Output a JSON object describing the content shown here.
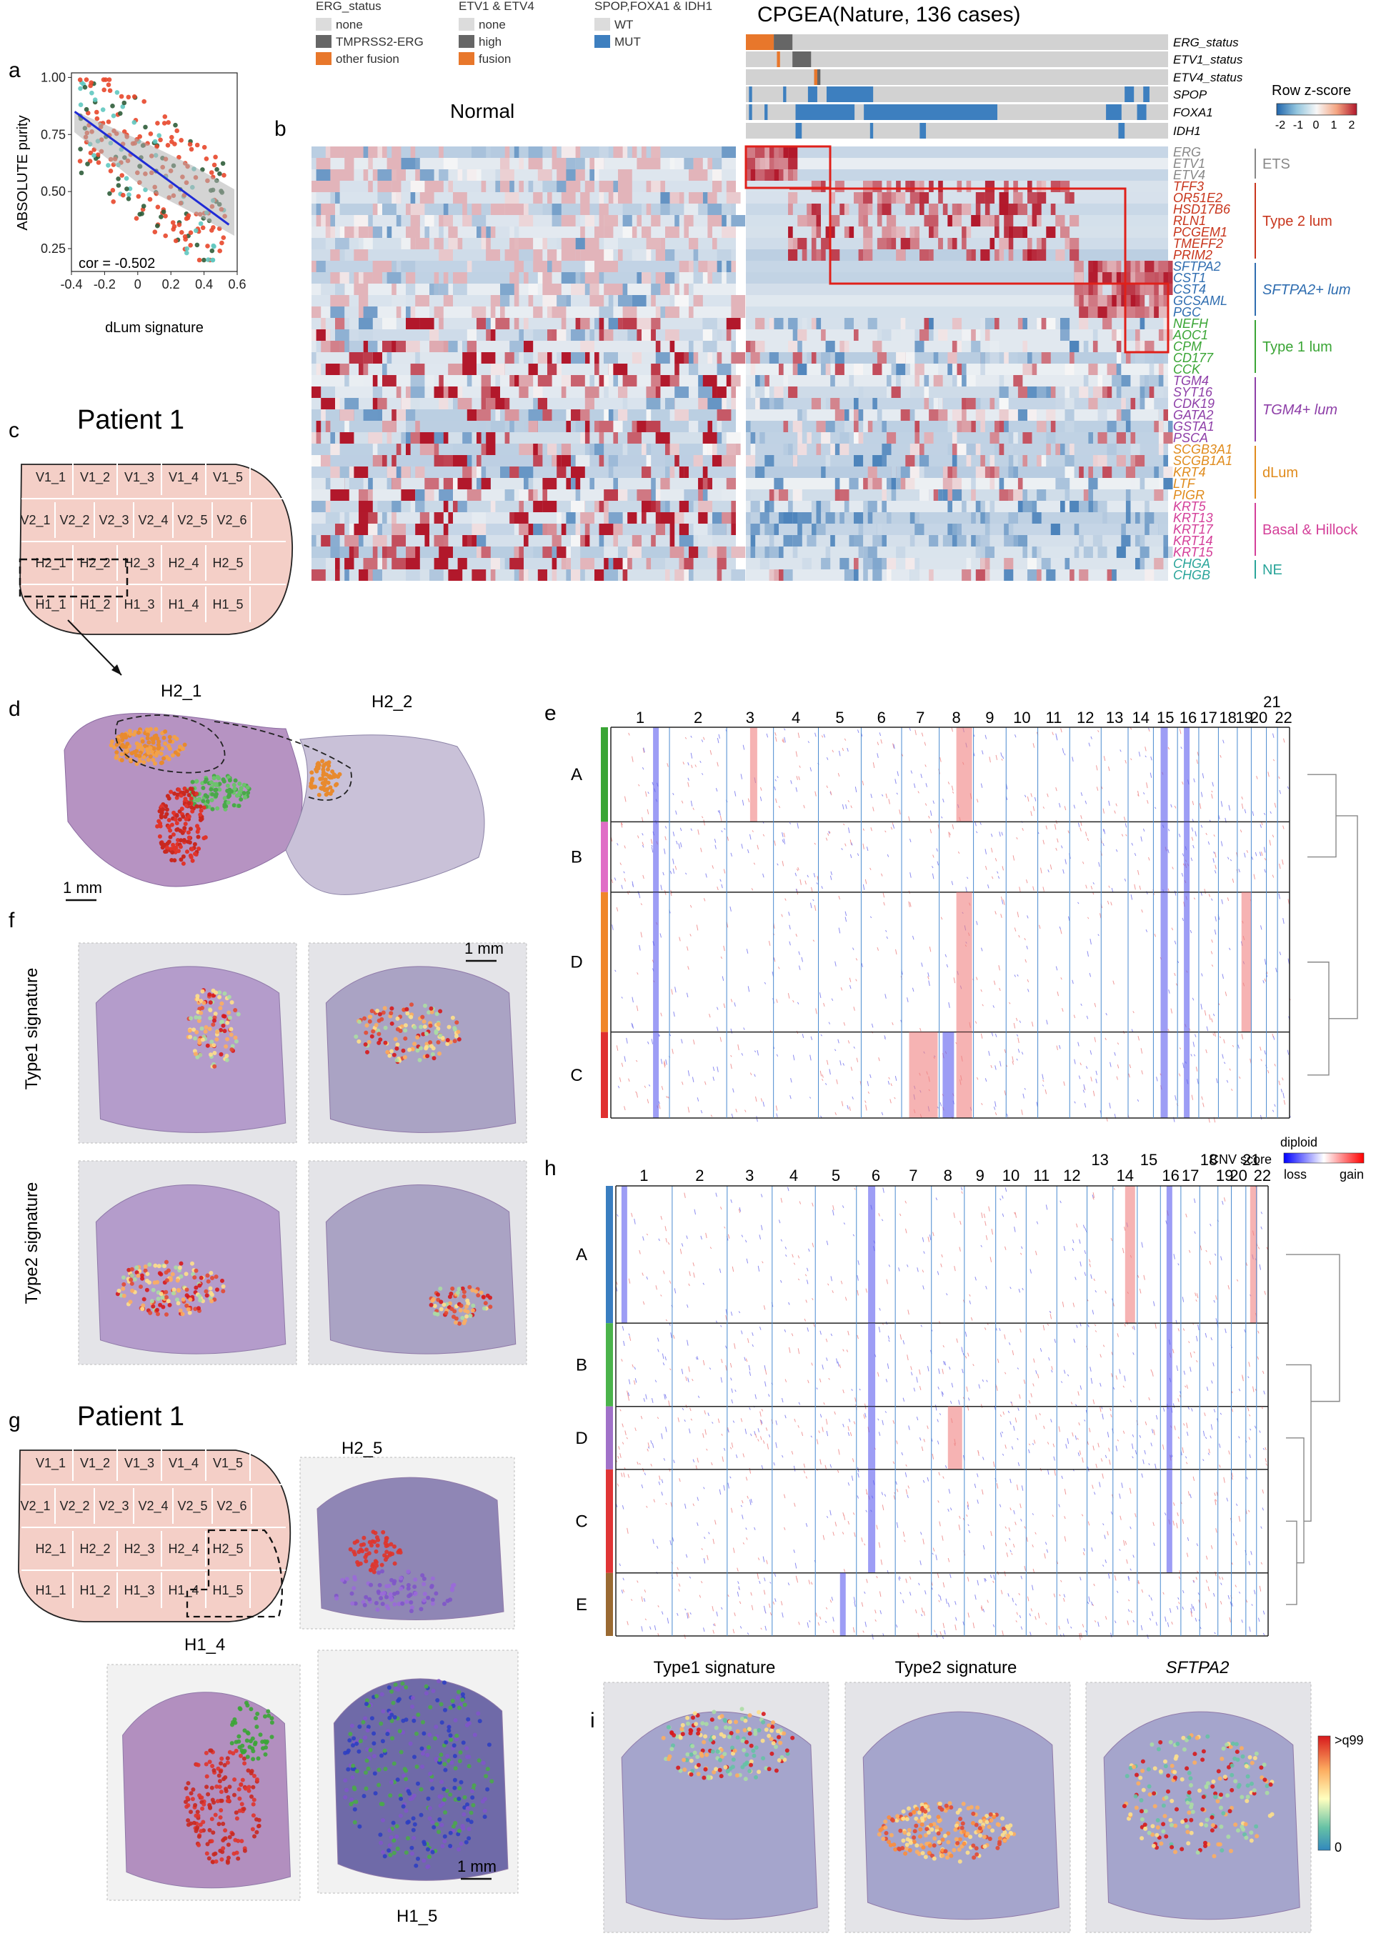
{
  "panel_labels": {
    "a": "a",
    "b": "b",
    "c": "c",
    "d": "d",
    "e": "e",
    "f": "f",
    "g": "g",
    "h": "h",
    "i": "i"
  },
  "panel_a": {
    "chart_data": {
      "type": "scatter",
      "xlabel": "dLum signature",
      "ylabel": "ABSOLUTE purity",
      "xlim": [
        -0.4,
        0.6
      ],
      "ylim": [
        0.15,
        1.02
      ],
      "xticks": [
        "-0.4",
        "-0.2",
        "0",
        "0.2",
        "0.4",
        "0.6"
      ],
      "yticks": [
        "0.25",
        "0.50",
        "0.75",
        "1.00"
      ],
      "annotation": "cor = -0.502",
      "fit_line": {
        "x": [
          -0.38,
          0.55
        ],
        "y": [
          0.85,
          0.355
        ]
      },
      "series_colors": [
        "#e8472b",
        "#2f5d3a",
        "#5fc8c0"
      ]
    }
  },
  "panel_b": {
    "title_normal": "Normal",
    "title_cpgea": "CPGEA(Nature, 136 cases)",
    "legend_titles": [
      "ERG_status",
      "ETV1 & ETV4",
      "SPOP,FOXA1 & IDH1"
    ],
    "legend_groups": [
      [
        {
          "label": "none",
          "color": "#dcdcdc"
        },
        {
          "label": "TMPRSS2-ERG",
          "color": "#666666"
        },
        {
          "label": "other fusion",
          "color": "#e8772b"
        }
      ],
      [
        {
          "label": "none",
          "color": "#dcdcdc"
        },
        {
          "label": "high",
          "color": "#666666"
        },
        {
          "label": "fusion",
          "color": "#e8772b"
        }
      ],
      [
        {
          "label": "WT",
          "color": "#dcdcdc"
        },
        {
          "label": "MUT",
          "color": "#3d7fbf"
        }
      ]
    ],
    "annotation_rows": [
      "ERG_status",
      "ETV1_status",
      "ETV4_status",
      "SPOP",
      "FOXA1",
      "IDH1"
    ],
    "colorbar_title": "Row z-score",
    "colorbar_ticks": [
      "-2",
      "-1",
      "0",
      "1",
      "2"
    ],
    "gene_groups": [
      {
        "name": "ETS",
        "color": "#888888",
        "italic": false,
        "genes": [
          "ERG",
          "ETV1",
          "ETV4"
        ]
      },
      {
        "name": "Type 2 lum",
        "color": "#c8361d",
        "italic": false,
        "genes": [
          "TFF3",
          "OR51E2",
          "HSD17B6",
          "RLN1",
          "PCGEM1",
          "TMEFF2",
          "PRIM2"
        ]
      },
      {
        "name": "SFTPA2+ lum",
        "color": "#2f6db0",
        "italic": true,
        "genes": [
          "SFTPA2",
          "CST1",
          "CST4",
          "GCSAML",
          "PGC"
        ]
      },
      {
        "name": "Type 1 lum",
        "color": "#3aa535",
        "italic": false,
        "genes": [
          "NEFH",
          "AOC1",
          "CPM",
          "CD177",
          "CCK"
        ]
      },
      {
        "name": "TGM4+ lum",
        "color": "#8e3fa8",
        "italic": true,
        "genes": [
          "TGM4",
          "SYT16",
          "CDK19",
          "GATA2",
          "GSTA1",
          "PSCA"
        ]
      },
      {
        "name": "dLum",
        "color": "#e08b1c",
        "italic": false,
        "genes": [
          "SCGB3A1",
          "SCGB1A1",
          "KRT4",
          "LTF",
          "PIGR"
        ]
      },
      {
        "name": "Basal & Hillock",
        "color": "#d43f99",
        "italic": false,
        "genes": [
          "KRT5",
          "KRT13",
          "KRT17",
          "KRT14",
          "KRT15"
        ]
      },
      {
        "name": "NE",
        "color": "#2aa59a",
        "italic": false,
        "genes": [
          "CHGA",
          "CHGB"
        ]
      }
    ]
  },
  "panel_c": {
    "title": "Patient 1",
    "rows": [
      [
        "V1_1",
        "V1_2",
        "V1_3",
        "V1_4",
        "V1_5"
      ],
      [
        "V2_1",
        "V2_2",
        "V2_3",
        "V2_4",
        "V2_5",
        "V2_6"
      ],
      [
        "H2_1",
        "H2_2",
        "H2_3",
        "H2_4",
        "H2_5"
      ],
      [
        "H1_1",
        "H1_2",
        "H1_3",
        "H1_4",
        "H1_5"
      ]
    ]
  },
  "panel_d": {
    "section_left": "H2_1",
    "section_right": "H2_2",
    "scale": "1 mm"
  },
  "panel_f": {
    "row1": "Type1 signature",
    "row2": "Type2 signature",
    "scale": "1 mm"
  },
  "panel_g": {
    "title": "Patient 1",
    "rows": [
      [
        "V1_1",
        "V1_2",
        "V1_3",
        "V1_4",
        "V1_5"
      ],
      [
        "V2_1",
        "V2_2",
        "V2_3",
        "V2_4",
        "V2_5",
        "V2_6"
      ],
      [
        "H2_1",
        "H2_2",
        "H2_3",
        "H2_4",
        "H2_5"
      ],
      [
        "H1_1",
        "H1_2",
        "H1_3",
        "H1_4",
        "H1_5"
      ]
    ],
    "sections": [
      "H2_5",
      "H1_4",
      "H1_5"
    ],
    "scale": "1 mm"
  },
  "panel_e": {
    "chromosomes": [
      "1",
      "2",
      "3",
      "4",
      "5",
      "6",
      "7",
      "8",
      "9",
      "10",
      "11",
      "12",
      "13",
      "14",
      "15",
      "16",
      "17",
      "18",
      "19",
      "20",
      "21",
      "22"
    ],
    "clusters": [
      {
        "label": "A",
        "color": "#3aa535"
      },
      {
        "label": "B",
        "color": "#e06ec6"
      },
      {
        "label": "D",
        "color": "#f0862a"
      },
      {
        "label": "C",
        "color": "#e03030"
      }
    ],
    "legend_title": "CNV score",
    "legend_mid": "diploid",
    "legend_low": "loss",
    "legend_high": "gain"
  },
  "panel_h": {
    "chromosomes": [
      "1",
      "2",
      "3",
      "4",
      "5",
      "6",
      "7",
      "8",
      "9",
      "10",
      "11",
      "12",
      "13",
      "14",
      "15",
      "16",
      "17",
      "18",
      "19",
      "20",
      "21",
      "22"
    ],
    "clusters": [
      {
        "label": "A",
        "color": "#3a7ec0"
      },
      {
        "label": "B",
        "color": "#4bb34b"
      },
      {
        "label": "D",
        "color": "#a071c8"
      },
      {
        "label": "C",
        "color": "#e03535"
      },
      {
        "label": "E",
        "color": "#9a6a32"
      }
    ]
  },
  "panel_i": {
    "titles": [
      "Type1 signature",
      "Type2 signature",
      "SFTPA2"
    ],
    "legend_max": ">q99",
    "legend_min": "0"
  }
}
